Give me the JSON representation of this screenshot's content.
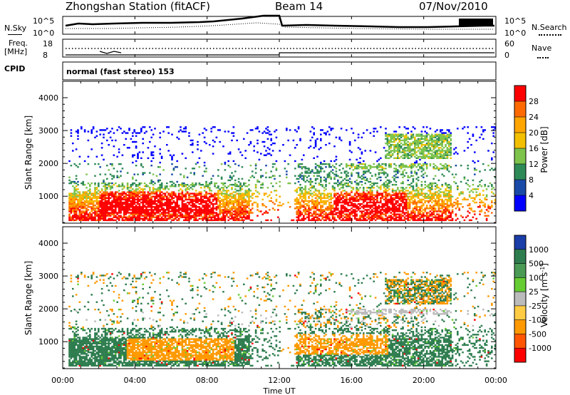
{
  "header": {
    "station": "Zhongshan Station (fitACF)",
    "beam": "Beam 14",
    "date": "07/Nov/2010"
  },
  "summary_panels": {
    "nsky_label": "N.Sky",
    "nsky_ticks": [
      "10^5",
      "10^0"
    ],
    "nsearch_label": "N.Search",
    "freq_label_line1": "Freq.",
    "freq_label_line2": "[MHz]",
    "freq_ticks": [
      "18",
      "8"
    ],
    "nave_ticks": [
      "60",
      "0"
    ],
    "nave_label": "Nave",
    "cpid_label": "CPID",
    "cpid_value": "normal (fast stereo) 153"
  },
  "chart_data": [
    {
      "type": "heatmap",
      "name": "power",
      "ylabel": "Slant Range [km]",
      "y_ticks": [
        "4000",
        "3000",
        "2000",
        "1000"
      ],
      "ylim": [
        180,
        4500
      ],
      "colorbar_label": "Power [dB]",
      "colorbar_ticks": [
        "28",
        "24",
        "20",
        "16",
        "12",
        "8",
        "4"
      ],
      "colorbar_colors": [
        "#ff0000",
        "#ff6a00",
        "#ffa500",
        "#f2c000",
        "#7dc34c",
        "#2e8b57",
        "#1a4aa8",
        "#0000ff"
      ]
    },
    {
      "type": "heatmap",
      "name": "velocity",
      "ylabel": "Slant Range [km]",
      "y_ticks": [
        "4000",
        "3000",
        "2000",
        "1000"
      ],
      "ylim": [
        180,
        4500
      ],
      "colorbar_label": "Velocity [m s",
      "colorbar_label_sup": "-1",
      "colorbar_label_end": "]",
      "colorbar_ticks": [
        "1000",
        "500",
        "100",
        "25",
        "-25",
        "-100",
        "-500",
        "-1000"
      ],
      "colorbar_colors": [
        "#1a3da8",
        "#2e7d4f",
        "#4a9a55",
        "#66cc33",
        "#bbbbbb",
        "#ffcc44",
        "#ff9900",
        "#ff5500",
        "#ff0000"
      ]
    }
  ],
  "time_axis": {
    "ticks": [
      "00:00",
      "04:00",
      "08:00",
      "12:00",
      "16:00",
      "20:00",
      "00:00"
    ],
    "label": "Time UT"
  }
}
